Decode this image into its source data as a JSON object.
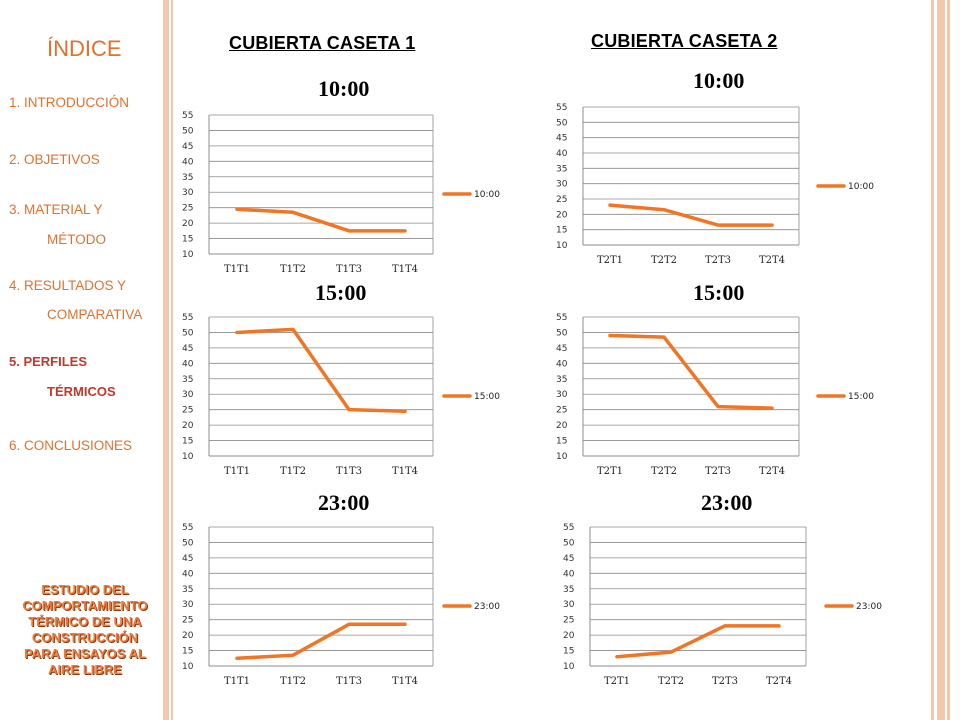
{
  "sidebar": {
    "index_title": "ÍNDICE",
    "nav": [
      {
        "lines": [
          "1. INTRODUCCIÓN"
        ],
        "active": false
      },
      {
        "lines": [
          "2. OBJETIVOS"
        ],
        "active": false
      },
      {
        "lines": [
          "3. MATERIAL Y",
          "MÉTODO"
        ],
        "active": false
      },
      {
        "lines": [
          "4. RESULTADOS  Y",
          "COMPARATIVA"
        ],
        "active": false
      },
      {
        "lines": [
          "5. PERFILES",
          "TÉRMICOS"
        ],
        "active": true
      },
      {
        "lines": [
          "6. CONCLUSIONES"
        ],
        "active": false
      }
    ],
    "study_title": [
      "ESTUDIO DEL",
      "COMPORTAMIENTO",
      "TÉRMICO DE UNA",
      "CONSTRUCCIÓN",
      "PARA ENSAYOS AL",
      "AIRE LIBRE"
    ]
  },
  "columns": {
    "caseta1": "CUBIERTA  CASETA 1",
    "caseta2": "CUBIERTA  CASETA 2"
  },
  "colors": {
    "accent": "#e4702d",
    "line": "#f07524",
    "grid": "#8c8c8c"
  },
  "chart_data": [
    {
      "type": "line",
      "panel": "caseta1-1000",
      "title": "10:00",
      "categories": [
        "T1T1",
        "T1T2",
        "T1T3",
        "T1T4"
      ],
      "series": [
        {
          "name": "10:00",
          "values": [
            24.5,
            23.5,
            17.5,
            17.5
          ]
        }
      ],
      "ylim": [
        10,
        55
      ],
      "yticks": [
        10,
        15,
        20,
        25,
        30,
        35,
        40,
        45,
        50,
        55
      ],
      "legend": "right",
      "grid": true
    },
    {
      "type": "line",
      "panel": "caseta2-1000",
      "title": "10:00",
      "categories": [
        "T2T1",
        "T2T2",
        "T2T3",
        "T2T4"
      ],
      "series": [
        {
          "name": "10:00",
          "values": [
            23,
            21.5,
            16.5,
            16.5
          ]
        }
      ],
      "ylim": [
        10,
        55
      ],
      "yticks": [
        10,
        15,
        20,
        25,
        30,
        35,
        40,
        45,
        50,
        55
      ],
      "legend": "right",
      "grid": true
    },
    {
      "type": "line",
      "panel": "caseta1-1500",
      "title": "15:00",
      "categories": [
        "T1T1",
        "T1T2",
        "T1T3",
        "T1T4"
      ],
      "series": [
        {
          "name": "15:00",
          "values": [
            50,
            51,
            25,
            24.5
          ]
        }
      ],
      "ylim": [
        10,
        55
      ],
      "yticks": [
        10,
        15,
        20,
        25,
        30,
        35,
        40,
        45,
        50,
        55
      ],
      "legend": "right",
      "grid": true
    },
    {
      "type": "line",
      "panel": "caseta2-1500",
      "title": "15:00",
      "categories": [
        "T2T1",
        "T2T2",
        "T2T3",
        "T2T4"
      ],
      "series": [
        {
          "name": "15:00",
          "values": [
            49,
            48.5,
            26,
            25.5
          ]
        }
      ],
      "ylim": [
        10,
        55
      ],
      "yticks": [
        10,
        15,
        20,
        25,
        30,
        35,
        40,
        45,
        50,
        55
      ],
      "legend": "right",
      "grid": true
    },
    {
      "type": "line",
      "panel": "caseta1-2300",
      "title": "23:00",
      "categories": [
        "T1T1",
        "T1T2",
        "T1T3",
        "T1T4"
      ],
      "series": [
        {
          "name": "23:00",
          "values": [
            12.5,
            13.5,
            23.5,
            23.5
          ]
        }
      ],
      "ylim": [
        10,
        55
      ],
      "yticks": [
        10,
        15,
        20,
        25,
        30,
        35,
        40,
        45,
        50,
        55
      ],
      "legend": "right",
      "grid": true
    },
    {
      "type": "line",
      "panel": "caseta2-2300",
      "title": "23:00",
      "categories": [
        "T2T1",
        "T2T2",
        "T2T3",
        "T2T4"
      ],
      "series": [
        {
          "name": "23:00",
          "values": [
            13,
            14.5,
            23,
            23
          ]
        }
      ],
      "ylim": [
        10,
        55
      ],
      "yticks": [
        10,
        15,
        20,
        25,
        30,
        35,
        40,
        45,
        50,
        55
      ],
      "legend": "right",
      "grid": true
    }
  ]
}
